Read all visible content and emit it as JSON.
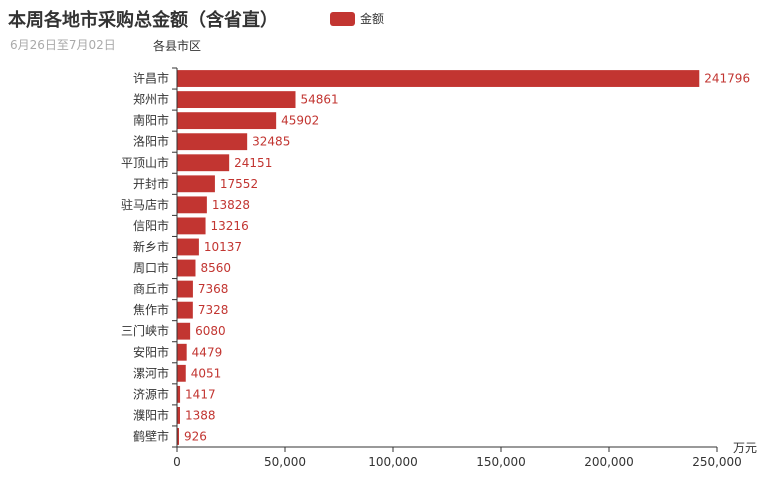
{
  "title": "本周各地市采购总金额（含省直）",
  "subtitle": "6月26日至7月02日",
  "colors": {
    "bar": "#c23531",
    "axis": "#333333",
    "text": "#333333"
  },
  "chart_data": {
    "type": "bar",
    "orientation": "horizontal",
    "ylabel": "各县市区",
    "xlabel": "万元",
    "xlim": [
      0,
      250000
    ],
    "xticks": [
      "0",
      "50,000",
      "100,000",
      "150,000",
      "200,000",
      "250,000"
    ],
    "xtick_values": [
      0,
      50000,
      100000,
      150000,
      200000,
      250000
    ],
    "legend_position": "top-center",
    "grid": false,
    "categories": [
      "许昌市",
      "郑州市",
      "南阳市",
      "洛阳市",
      "平顶山市",
      "开封市",
      "驻马店市",
      "信阳市",
      "新乡市",
      "周口市",
      "商丘市",
      "焦作市",
      "三门峡市",
      "安阳市",
      "漯河市",
      "济源市",
      "濮阳市",
      "鹤壁市"
    ],
    "series": [
      {
        "name": "金额",
        "values": [
          241796,
          54861,
          45902,
          32485,
          24151,
          17552,
          13828,
          13216,
          10137,
          8560,
          7368,
          7328,
          6080,
          4479,
          4051,
          1417,
          1388,
          926
        ]
      }
    ]
  }
}
